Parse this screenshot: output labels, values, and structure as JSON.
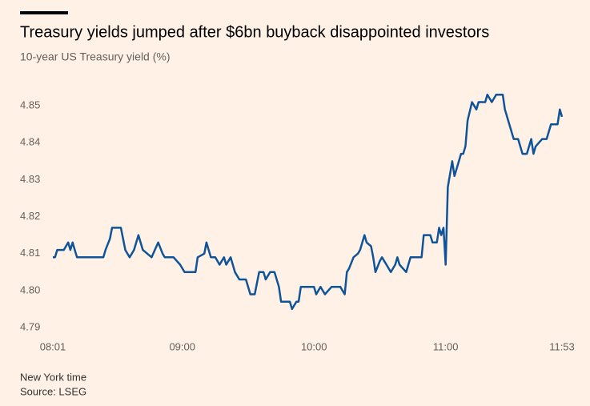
{
  "chart_data": {
    "type": "line",
    "title": "Treasury yields jumped after $6bn buyback disappointed investors",
    "subtitle": "10-year US Treasury yield (%)",
    "notes": [
      "New York time",
      "Source: LSEG"
    ],
    "color": "#0f5499",
    "grid": false,
    "x": [
      "08:01",
      "08:02",
      "08:03",
      "08:06",
      "08:08",
      "08:09",
      "08:10",
      "08:11",
      "08:12",
      "08:24",
      "08:25",
      "08:27",
      "08:28",
      "08:32",
      "08:34",
      "08:36",
      "08:38",
      "08:40",
      "08:42",
      "08:44",
      "08:46",
      "08:49",
      "08:51",
      "08:52",
      "08:56",
      "08:59",
      "09:01",
      "09:06",
      "09:07",
      "09:10",
      "09:11",
      "09:13",
      "09:15",
      "09:17",
      "09:19",
      "09:20",
      "09:22",
      "09:24",
      "09:26",
      "09:29",
      "09:31",
      "09:33",
      "09:35",
      "09:37",
      "09:38",
      "09:40",
      "09:42",
      "09:44",
      "09:45",
      "09:49",
      "09:50",
      "09:52",
      "09:53",
      "09:54",
      "10:00",
      "10:01",
      "10:03",
      "10:05",
      "10:08",
      "10:12",
      "10:14",
      "10:15",
      "10:16",
      "10:18",
      "10:20",
      "10:21",
      "10:23",
      "10:24",
      "10:26",
      "10:27",
      "10:28",
      "10:30",
      "10:31",
      "10:33",
      "10:35",
      "10:37",
      "10:38",
      "10:39",
      "10:42",
      "10:44",
      "10:49",
      "10:50",
      "10:53",
      "10:54",
      "10:56",
      "10:57",
      "10:58",
      "10:59",
      "11:00",
      "11:01",
      "11:03",
      "11:04",
      "11:06",
      "11:07",
      "11:08",
      "11:09",
      "11:10",
      "11:12",
      "11:14",
      "11:15",
      "11:18",
      "11:19",
      "11:21",
      "11:23",
      "11:26",
      "11:27",
      "11:29",
      "11:31",
      "11:33",
      "11:35",
      "11:37",
      "11:39",
      "11:40",
      "11:41",
      "11:44",
      "11:46",
      "11:48",
      "11:51",
      "11:52",
      "11:53"
    ],
    "values": [
      4.809,
      4.809,
      4.811,
      4.811,
      4.813,
      4.811,
      4.813,
      4.811,
      4.809,
      4.809,
      4.811,
      4.814,
      4.817,
      4.817,
      4.811,
      4.809,
      4.811,
      4.815,
      4.811,
      4.81,
      4.809,
      4.813,
      4.81,
      4.809,
      4.809,
      4.807,
      4.805,
      4.805,
      4.809,
      4.81,
      4.813,
      4.809,
      4.809,
      4.807,
      4.809,
      4.807,
      4.809,
      4.805,
      4.803,
      4.803,
      4.799,
      4.799,
      4.805,
      4.805,
      4.803,
      4.805,
      4.805,
      4.801,
      4.797,
      4.797,
      4.795,
      4.797,
      4.797,
      4.801,
      4.801,
      4.799,
      4.801,
      4.799,
      4.801,
      4.801,
      4.799,
      4.805,
      4.806,
      4.809,
      4.81,
      4.811,
      4.815,
      4.813,
      4.812,
      4.809,
      4.805,
      4.808,
      4.809,
      4.807,
      4.805,
      4.807,
      4.809,
      4.807,
      4.805,
      4.809,
      4.809,
      4.815,
      4.815,
      4.813,
      4.813,
      4.817,
      4.815,
      4.817,
      4.807,
      4.828,
      4.835,
      4.831,
      4.835,
      4.837,
      4.837,
      4.839,
      4.846,
      4.851,
      4.849,
      4.851,
      4.851,
      4.853,
      4.851,
      4.853,
      4.853,
      4.849,
      4.845,
      4.841,
      4.841,
      4.837,
      4.837,
      4.841,
      4.837,
      4.839,
      4.841,
      4.841,
      4.845,
      4.845,
      4.849,
      4.847
    ],
    "xlim": [
      "08:01",
      "11:53"
    ],
    "xticks": [
      "08:01",
      "09:00",
      "10:00",
      "11:00",
      "11:53"
    ],
    "ylim": [
      4.79,
      4.855
    ],
    "yticks": [
      4.79,
      {
        "value": 4.8,
        "label": "4.80"
      },
      4.81,
      4.82,
      4.83,
      4.84,
      4.85
    ]
  }
}
